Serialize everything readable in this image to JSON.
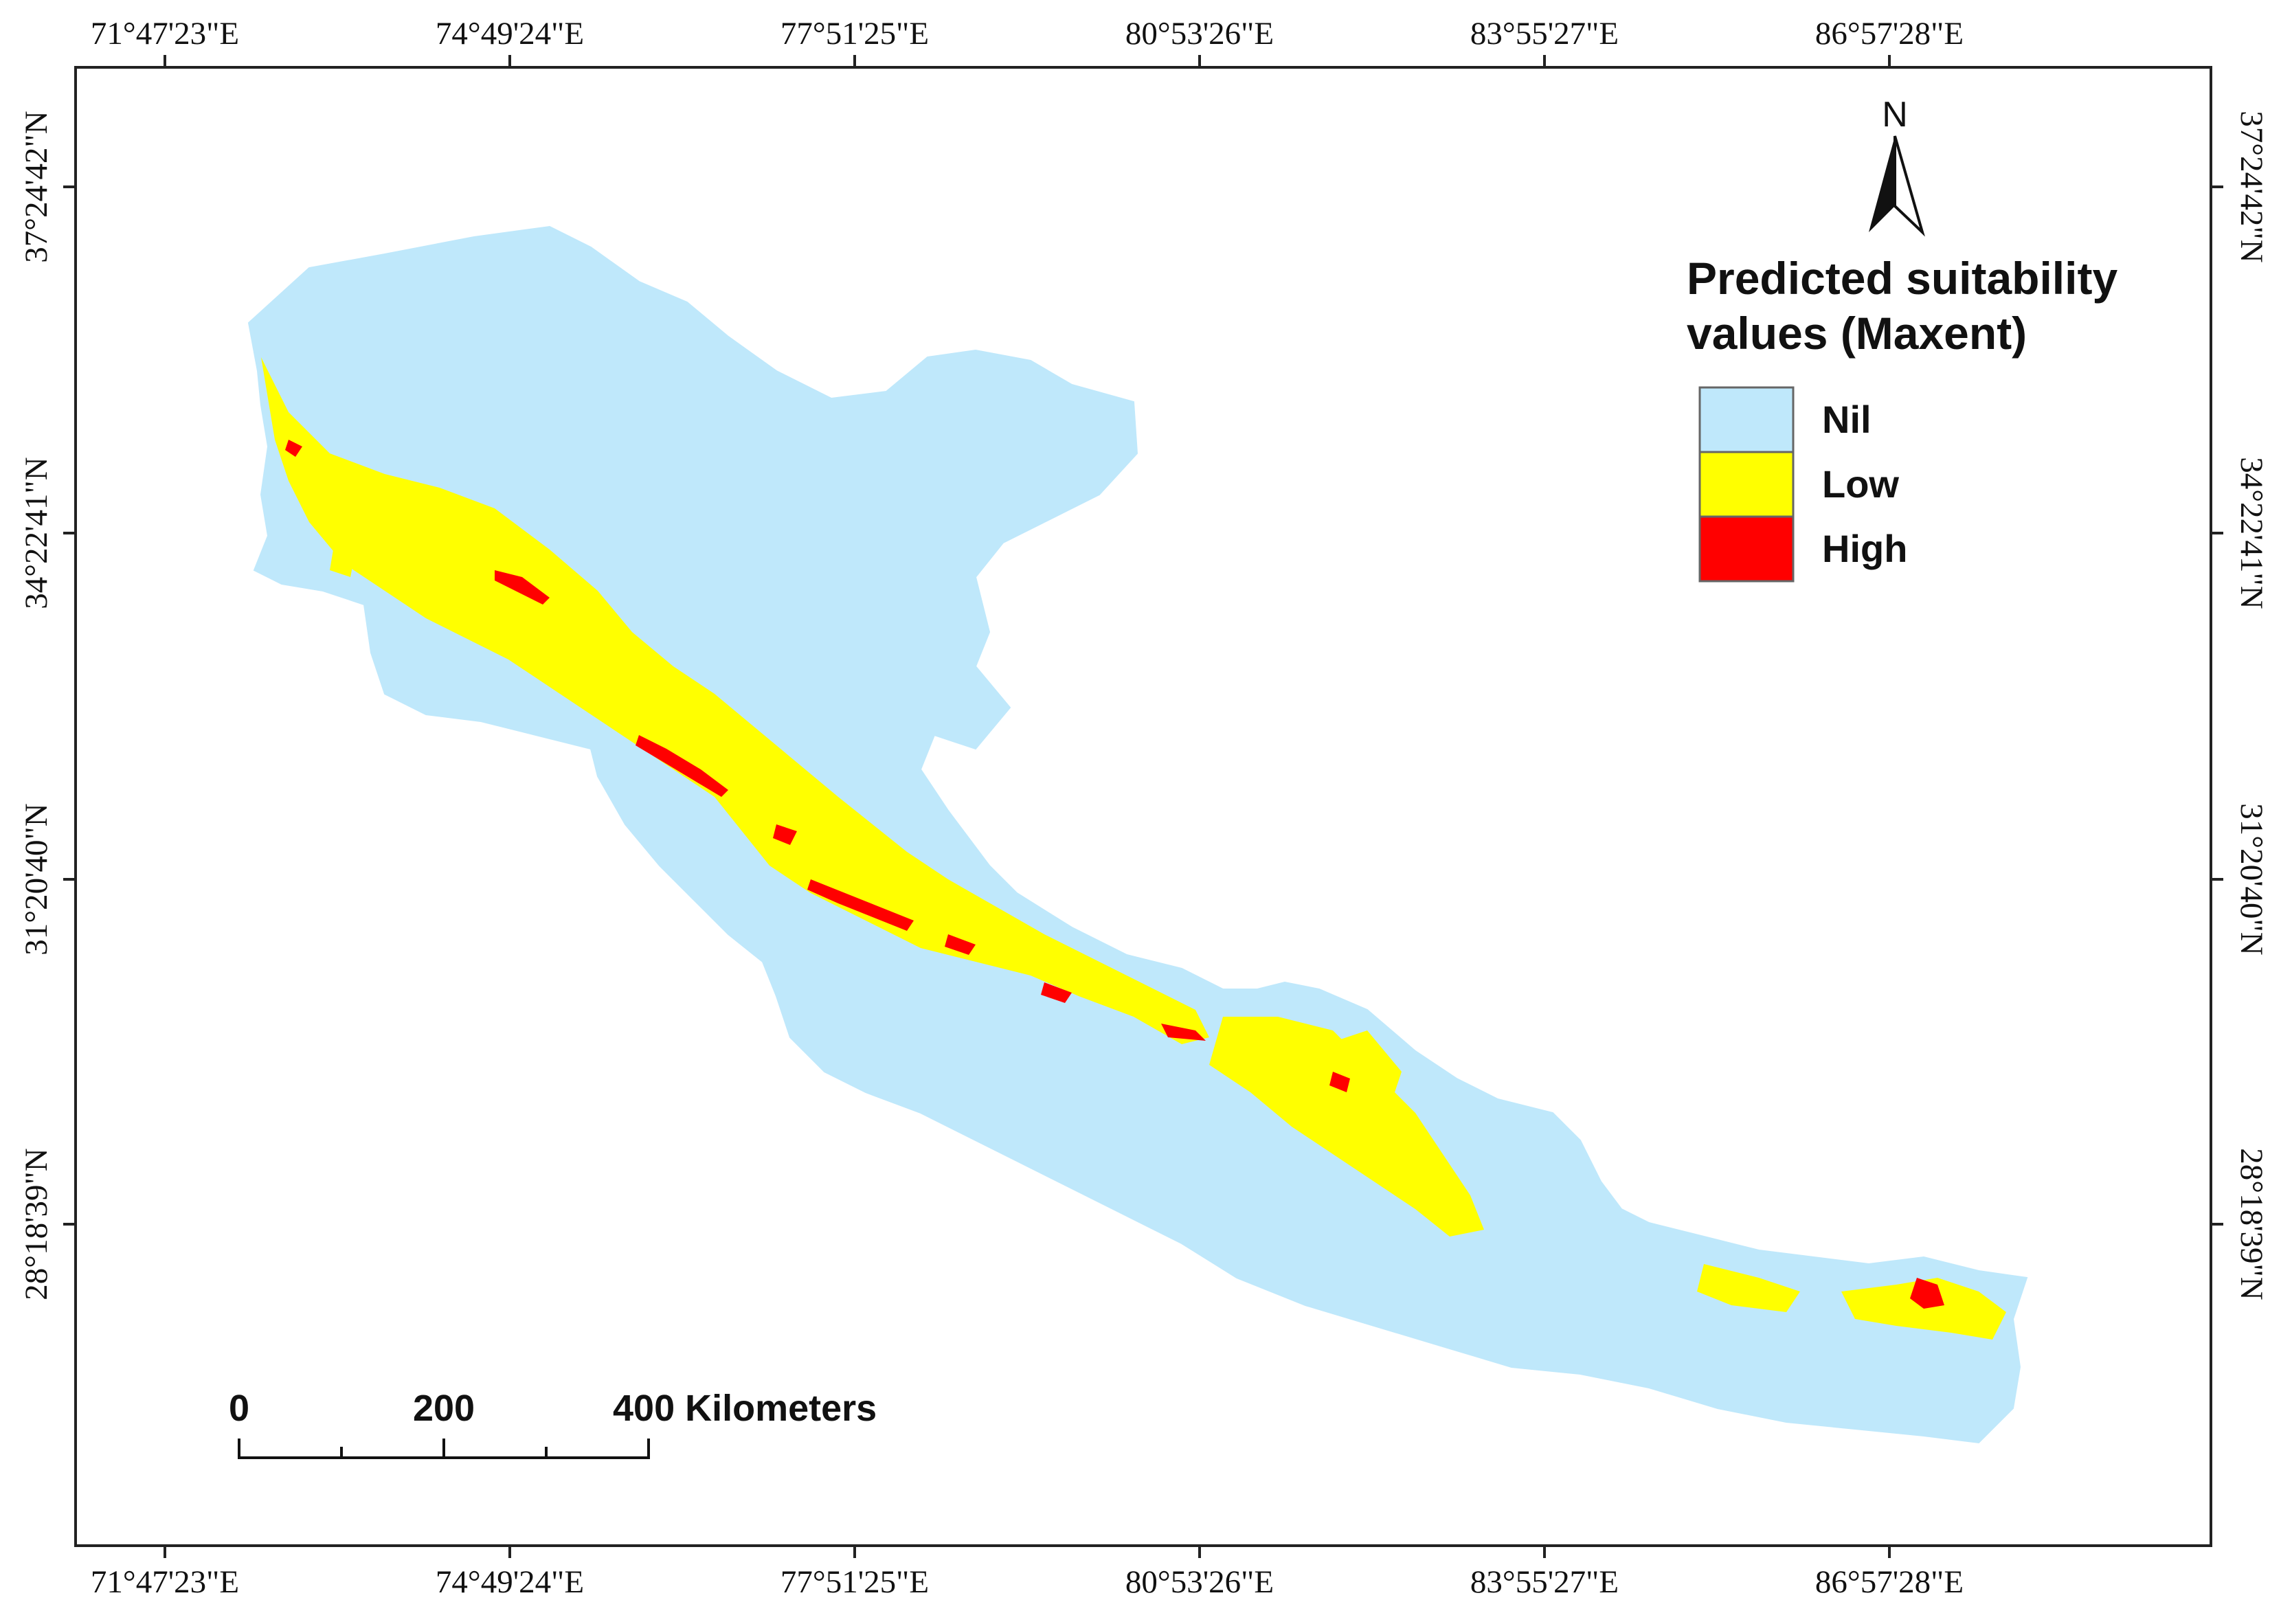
{
  "x_axis": {
    "labels": [
      "71°47'23\"E",
      "74°49'24\"E",
      "77°51'25\"E",
      "80°53'26\"E",
      "83°55'27\"E",
      "86°57'28\"E"
    ]
  },
  "y_axis": {
    "labels": [
      "37°24'42\"N",
      "34°22'41\"N",
      "31°20'40\"N",
      "28°18'39\"N"
    ]
  },
  "north_arrow": {
    "label": "N",
    "icon": "north-arrow-icon"
  },
  "legend": {
    "title_line1": "Predicted suitability",
    "title_line2": "values (Maxent)",
    "items": [
      {
        "label": "Nil",
        "color": "#bfe8fb"
      },
      {
        "label": "Low",
        "color": "#ffff00"
      },
      {
        "label": "High",
        "color": "#ff0000"
      }
    ]
  },
  "scale_bar": {
    "labels": [
      "0",
      "200",
      "400 Kilometers"
    ]
  },
  "colors": {
    "nil": "#bfe8fb",
    "low": "#ffff00",
    "high": "#ff0000",
    "frame": "#222222"
  }
}
